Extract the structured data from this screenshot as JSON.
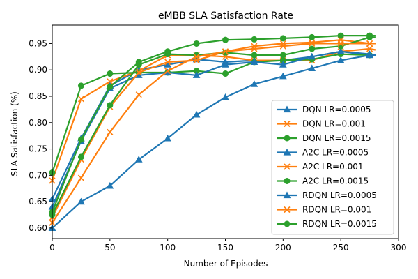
{
  "chart_data": {
    "type": "line",
    "title": "eMBB SLA Satisfaction Rate",
    "xlabel": "Number of Episodes",
    "ylabel": "SLA Satisfaction (%)",
    "xlim": [
      0,
      300
    ],
    "ylim": [
      0.58,
      0.985
    ],
    "xticks": [
      0,
      50,
      100,
      150,
      200,
      250,
      300
    ],
    "yticks": [
      0.6,
      0.65,
      0.7,
      0.75,
      0.8,
      0.85,
      0.9,
      0.95
    ],
    "ytick_labels": [
      "0.60",
      "0.65",
      "0.70",
      "0.75",
      "0.80",
      "0.85",
      "0.90",
      "0.95"
    ],
    "grid": false,
    "legend_position": "lower-right",
    "colors": {
      "blue": "#1f77b4",
      "orange": "#ff7f0e",
      "green": "#2ca02c"
    },
    "series": [
      {
        "name": "DQN LR=0.0005",
        "color": "#1f77b4",
        "marker": "triangle",
        "x": [
          0,
          25,
          50,
          75,
          100,
          125,
          150,
          175,
          200,
          225,
          250,
          275,
          280
        ],
        "y": [
          0.655,
          0.77,
          0.87,
          0.9,
          0.91,
          0.92,
          0.915,
          0.918,
          0.918,
          0.925,
          0.935,
          0.928,
          0.928
        ]
      },
      {
        "name": "DQN LR=0.001",
        "color": "#ff7f0e",
        "marker": "x",
        "x": [
          0,
          25,
          50,
          75,
          100,
          125,
          150,
          175,
          200,
          225,
          250,
          275,
          280
        ],
        "y": [
          0.69,
          0.845,
          0.878,
          0.898,
          0.928,
          0.928,
          0.925,
          0.918,
          0.918,
          0.918,
          0.935,
          0.94,
          0.938
        ]
      },
      {
        "name": "DQN LR=0.0015",
        "color": "#2ca02c",
        "marker": "circle",
        "x": [
          0,
          25,
          50,
          75,
          100,
          125,
          150,
          175,
          200,
          225,
          250,
          275,
          280
        ],
        "y": [
          0.705,
          0.87,
          0.893,
          0.895,
          0.895,
          0.898,
          0.893,
          0.915,
          0.918,
          0.92,
          0.93,
          0.928,
          0.928
        ]
      },
      {
        "name": "A2C LR=0.0005",
        "color": "#1f77b4",
        "marker": "triangle",
        "x": [
          0,
          25,
          50,
          75,
          100,
          125,
          150,
          175,
          200,
          225,
          250,
          275,
          280
        ],
        "y": [
          0.64,
          0.765,
          0.865,
          0.89,
          0.895,
          0.89,
          0.91,
          0.915,
          0.91,
          0.925,
          0.935,
          0.93,
          0.928
        ]
      },
      {
        "name": "A2C LR=0.001",
        "color": "#ff7f0e",
        "marker": "x",
        "x": [
          0,
          25,
          50,
          75,
          100,
          125,
          150,
          175,
          200,
          225,
          250,
          275,
          280
        ],
        "y": [
          0.62,
          0.73,
          0.83,
          0.895,
          0.915,
          0.918,
          0.935,
          0.945,
          0.95,
          0.952,
          0.957,
          0.95,
          0.95
        ]
      },
      {
        "name": "A2C LR=0.0015",
        "color": "#2ca02c",
        "marker": "circle",
        "x": [
          0,
          25,
          50,
          75,
          100,
          125,
          150,
          175,
          200,
          225,
          250,
          275,
          280
        ],
        "y": [
          0.625,
          0.735,
          0.833,
          0.91,
          0.93,
          0.928,
          0.933,
          0.928,
          0.928,
          0.94,
          0.945,
          0.962,
          0.962
        ]
      },
      {
        "name": "RDQN LR=0.0005",
        "color": "#1f77b4",
        "marker": "triangle",
        "x": [
          0,
          25,
          50,
          75,
          100,
          125,
          150,
          175,
          200,
          225,
          250,
          275,
          280
        ],
        "y": [
          0.6,
          0.65,
          0.68,
          0.73,
          0.77,
          0.815,
          0.848,
          0.873,
          0.888,
          0.903,
          0.918,
          0.928,
          0.928
        ]
      },
      {
        "name": "RDQN LR=0.001",
        "color": "#ff7f0e",
        "marker": "x",
        "x": [
          0,
          25,
          50,
          75,
          100,
          125,
          150,
          175,
          200,
          225,
          250,
          275,
          280
        ],
        "y": [
          0.61,
          0.695,
          0.782,
          0.853,
          0.898,
          0.925,
          0.935,
          0.94,
          0.945,
          0.95,
          0.95,
          0.95,
          0.95
        ]
      },
      {
        "name": "RDQN LR=0.0015",
        "color": "#2ca02c",
        "marker": "circle",
        "x": [
          0,
          25,
          50,
          75,
          100,
          125,
          150,
          175,
          200,
          225,
          250,
          275,
          280
        ],
        "y": [
          0.63,
          0.768,
          0.868,
          0.915,
          0.935,
          0.95,
          0.957,
          0.958,
          0.96,
          0.962,
          0.965,
          0.965,
          0.965
        ]
      }
    ]
  }
}
